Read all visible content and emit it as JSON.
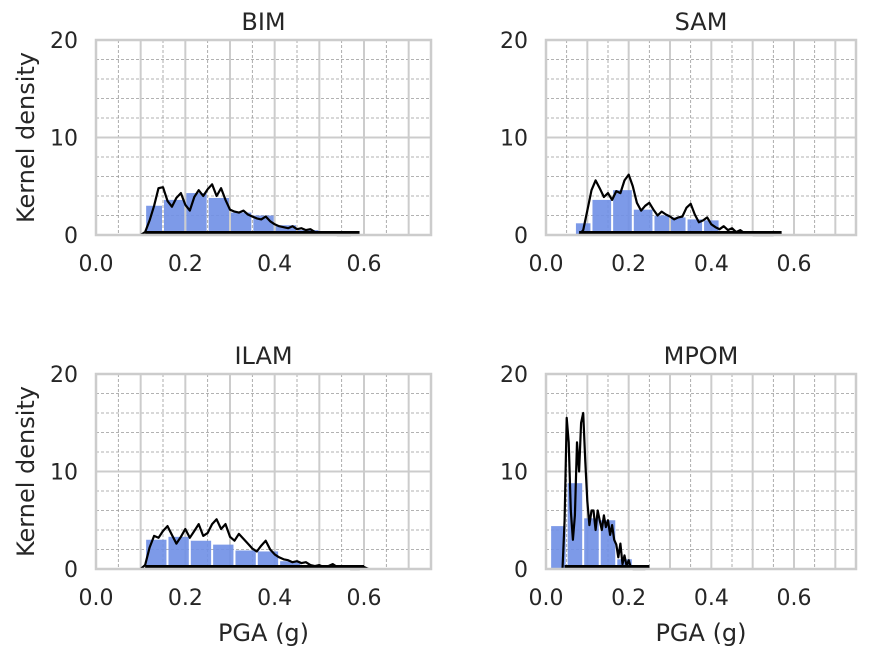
{
  "figure": {
    "ylabel": "Kernel density",
    "xlabel": "PGA (g)"
  },
  "colors": {
    "bar": "#6f8fe6",
    "kde": "#000000",
    "rug": "#000000",
    "major_grid": "#cccccc",
    "minor_grid": "#999999",
    "frame": "#cccccc"
  },
  "chart_data": [
    {
      "type": "bar",
      "title": "BIM",
      "xlim": [
        0,
        0.75
      ],
      "ylim": [
        0,
        20
      ],
      "xticks": [
        "0.0",
        "0.2",
        "0.4",
        "0.6"
      ],
      "yticks": [
        "0",
        "10",
        "20"
      ],
      "xlabel": "",
      "ylabel": "Kernel density",
      "bins": [
        [
          0.11,
          0.15,
          3.0
        ],
        [
          0.15,
          0.2,
          3.6
        ],
        [
          0.2,
          0.25,
          4.3
        ],
        [
          0.25,
          0.3,
          3.8
        ],
        [
          0.3,
          0.35,
          2.3
        ],
        [
          0.35,
          0.4,
          2.0
        ],
        [
          0.4,
          0.45,
          1.0
        ],
        [
          0.45,
          0.5,
          0.5
        ]
      ],
      "kde": [
        [
          0.1,
          0
        ],
        [
          0.11,
          0.3
        ],
        [
          0.12,
          1.5
        ],
        [
          0.13,
          3.0
        ],
        [
          0.14,
          4.8
        ],
        [
          0.15,
          4.9
        ],
        [
          0.16,
          3.5
        ],
        [
          0.17,
          2.9
        ],
        [
          0.18,
          3.8
        ],
        [
          0.19,
          4.3
        ],
        [
          0.2,
          3.1
        ],
        [
          0.21,
          2.5
        ],
        [
          0.22,
          3.9
        ],
        [
          0.23,
          4.6
        ],
        [
          0.24,
          4.0
        ],
        [
          0.25,
          4.7
        ],
        [
          0.26,
          5.2
        ],
        [
          0.27,
          4.0
        ],
        [
          0.28,
          4.8
        ],
        [
          0.29,
          3.6
        ],
        [
          0.3,
          2.6
        ],
        [
          0.31,
          2.4
        ],
        [
          0.32,
          2.3
        ],
        [
          0.33,
          2.5
        ],
        [
          0.34,
          2.1
        ],
        [
          0.35,
          1.9
        ],
        [
          0.36,
          1.7
        ],
        [
          0.37,
          1.6
        ],
        [
          0.38,
          1.9
        ],
        [
          0.39,
          1.4
        ],
        [
          0.4,
          1.1
        ],
        [
          0.41,
          0.9
        ],
        [
          0.42,
          0.8
        ],
        [
          0.43,
          0.7
        ],
        [
          0.44,
          0.9
        ],
        [
          0.45,
          0.6
        ],
        [
          0.46,
          0.7
        ],
        [
          0.47,
          0.5
        ],
        [
          0.48,
          0.6
        ],
        [
          0.49,
          0.3
        ],
        [
          0.5,
          0.2
        ],
        [
          0.52,
          0.1
        ],
        [
          0.53,
          0.25
        ],
        [
          0.54,
          0
        ],
        [
          0.57,
          0
        ],
        [
          0.58,
          0.2
        ],
        [
          0.59,
          0
        ]
      ],
      "rug_range": [
        0.11,
        0.59
      ]
    },
    {
      "type": "bar",
      "title": "SAM",
      "xlim": [
        0,
        0.75
      ],
      "ylim": [
        0,
        20
      ],
      "xticks": [
        "0.0",
        "0.2",
        "0.4",
        "0.6"
      ],
      "yticks": [
        "0",
        "10",
        "20"
      ],
      "xlabel": "",
      "ylabel": "",
      "bins": [
        [
          0.07,
          0.11,
          1.2
        ],
        [
          0.11,
          0.16,
          3.6
        ],
        [
          0.16,
          0.21,
          4.6
        ],
        [
          0.21,
          0.26,
          2.6
        ],
        [
          0.26,
          0.3,
          2.0
        ],
        [
          0.3,
          0.34,
          1.8
        ],
        [
          0.34,
          0.38,
          1.6
        ],
        [
          0.38,
          0.42,
          1.5
        ]
      ],
      "kde": [
        [
          0.08,
          0
        ],
        [
          0.09,
          0.5
        ],
        [
          0.1,
          2.5
        ],
        [
          0.11,
          4.6
        ],
        [
          0.12,
          5.6
        ],
        [
          0.13,
          4.8
        ],
        [
          0.14,
          3.9
        ],
        [
          0.15,
          4.3
        ],
        [
          0.16,
          3.6
        ],
        [
          0.17,
          4.5
        ],
        [
          0.18,
          4.3
        ],
        [
          0.19,
          5.6
        ],
        [
          0.2,
          6.2
        ],
        [
          0.21,
          5.0
        ],
        [
          0.22,
          3.3
        ],
        [
          0.23,
          2.5
        ],
        [
          0.24,
          3.0
        ],
        [
          0.25,
          3.3
        ],
        [
          0.26,
          2.6
        ],
        [
          0.27,
          2.0
        ],
        [
          0.28,
          2.4
        ],
        [
          0.29,
          2.1
        ],
        [
          0.3,
          1.9
        ],
        [
          0.31,
          1.6
        ],
        [
          0.32,
          1.8
        ],
        [
          0.33,
          1.9
        ],
        [
          0.34,
          2.8
        ],
        [
          0.35,
          3.2
        ],
        [
          0.36,
          2.1
        ],
        [
          0.37,
          1.3
        ],
        [
          0.38,
          1.5
        ],
        [
          0.39,
          1.8
        ],
        [
          0.4,
          1.1
        ],
        [
          0.41,
          0.8
        ],
        [
          0.42,
          0.6
        ],
        [
          0.43,
          0.9
        ],
        [
          0.44,
          0.5
        ],
        [
          0.45,
          0.7
        ],
        [
          0.46,
          0.3
        ],
        [
          0.47,
          0.5
        ],
        [
          0.48,
          0.2
        ],
        [
          0.49,
          0.3
        ],
        [
          0.5,
          0
        ],
        [
          0.55,
          0
        ],
        [
          0.56,
          0.25
        ],
        [
          0.57,
          0
        ]
      ],
      "rug_range": [
        0.08,
        0.57
      ]
    },
    {
      "type": "bar",
      "title": "ILAM",
      "xlim": [
        0,
        0.75
      ],
      "ylim": [
        0,
        20
      ],
      "xticks": [
        "0.0",
        "0.2",
        "0.4",
        "0.6"
      ],
      "yticks": [
        "0",
        "10",
        "20"
      ],
      "xlabel": "PGA (g)",
      "ylabel": "Kernel density",
      "bins": [
        [
          0.11,
          0.16,
          3.0
        ],
        [
          0.16,
          0.21,
          3.3
        ],
        [
          0.21,
          0.26,
          2.9
        ],
        [
          0.26,
          0.31,
          2.5
        ],
        [
          0.31,
          0.36,
          1.9
        ],
        [
          0.36,
          0.41,
          1.8
        ],
        [
          0.41,
          0.46,
          0.8
        ]
      ],
      "kde": [
        [
          0.1,
          0
        ],
        [
          0.11,
          0.4
        ],
        [
          0.12,
          2.2
        ],
        [
          0.13,
          3.4
        ],
        [
          0.14,
          3.2
        ],
        [
          0.15,
          3.9
        ],
        [
          0.16,
          4.4
        ],
        [
          0.17,
          3.5
        ],
        [
          0.18,
          2.6
        ],
        [
          0.19,
          3.3
        ],
        [
          0.2,
          4.1
        ],
        [
          0.21,
          3.2
        ],
        [
          0.22,
          3.9
        ],
        [
          0.23,
          4.6
        ],
        [
          0.24,
          3.4
        ],
        [
          0.25,
          3.7
        ],
        [
          0.26,
          4.6
        ],
        [
          0.27,
          5.1
        ],
        [
          0.28,
          4.1
        ],
        [
          0.29,
          4.6
        ],
        [
          0.3,
          3.3
        ],
        [
          0.31,
          2.9
        ],
        [
          0.32,
          3.6
        ],
        [
          0.33,
          3.1
        ],
        [
          0.34,
          2.6
        ],
        [
          0.35,
          2.1
        ],
        [
          0.36,
          1.8
        ],
        [
          0.37,
          2.4
        ],
        [
          0.38,
          2.9
        ],
        [
          0.39,
          2.0
        ],
        [
          0.4,
          1.5
        ],
        [
          0.41,
          1.2
        ],
        [
          0.42,
          1.0
        ],
        [
          0.43,
          0.9
        ],
        [
          0.44,
          0.7
        ],
        [
          0.45,
          0.8
        ],
        [
          0.46,
          0.6
        ],
        [
          0.47,
          0.7
        ],
        [
          0.48,
          0.4
        ],
        [
          0.49,
          0.3
        ],
        [
          0.5,
          0.4
        ],
        [
          0.51,
          0.2
        ],
        [
          0.52,
          0.3
        ],
        [
          0.53,
          0.5
        ],
        [
          0.54,
          0.2
        ],
        [
          0.55,
          0.3
        ],
        [
          0.56,
          0.1
        ],
        [
          0.57,
          0
        ],
        [
          0.59,
          0
        ],
        [
          0.6,
          0.2
        ],
        [
          0.61,
          0
        ]
      ],
      "rug_range": [
        0.11,
        0.6
      ]
    },
    {
      "type": "bar",
      "title": "MPOM",
      "xlim": [
        0,
        0.75
      ],
      "ylim": [
        0,
        20
      ],
      "xticks": [
        "0.0",
        "0.2",
        "0.4",
        "0.6"
      ],
      "yticks": [
        "0",
        "10",
        "20"
      ],
      "xlabel": "PGA (g)",
      "ylabel": "",
      "bins": [
        [
          0.01,
          0.05,
          4.4
        ],
        [
          0.05,
          0.09,
          8.8
        ],
        [
          0.09,
          0.13,
          5.2
        ],
        [
          0.13,
          0.17,
          5.0
        ],
        [
          0.17,
          0.21,
          1.0
        ]
      ],
      "kde": [
        [
          0.04,
          0
        ],
        [
          0.045,
          5.0
        ],
        [
          0.05,
          15.5
        ],
        [
          0.055,
          13.0
        ],
        [
          0.06,
          6.0
        ],
        [
          0.065,
          3.0
        ],
        [
          0.07,
          5.5
        ],
        [
          0.075,
          13.0
        ],
        [
          0.08,
          10.0
        ],
        [
          0.085,
          15.0
        ],
        [
          0.09,
          16.0
        ],
        [
          0.095,
          11.0
        ],
        [
          0.1,
          7.0
        ],
        [
          0.105,
          4.5
        ],
        [
          0.11,
          6.0
        ],
        [
          0.115,
          6.0
        ],
        [
          0.12,
          4.0
        ],
        [
          0.125,
          6.0
        ],
        [
          0.13,
          5.0
        ],
        [
          0.135,
          4.0
        ],
        [
          0.14,
          5.5
        ],
        [
          0.145,
          4.3
        ],
        [
          0.15,
          5.0
        ],
        [
          0.155,
          3.5
        ],
        [
          0.16,
          4.5
        ],
        [
          0.165,
          3.0
        ],
        [
          0.17,
          2.5
        ],
        [
          0.175,
          1.2
        ],
        [
          0.18,
          2.6
        ],
        [
          0.185,
          0.5
        ],
        [
          0.19,
          1.4
        ],
        [
          0.195,
          0.3
        ],
        [
          0.2,
          0.9
        ],
        [
          0.205,
          0.2
        ],
        [
          0.21,
          0
        ],
        [
          0.24,
          0
        ],
        [
          0.245,
          0.3
        ],
        [
          0.25,
          0
        ]
      ],
      "rug_range": [
        0.045,
        0.25
      ]
    }
  ]
}
